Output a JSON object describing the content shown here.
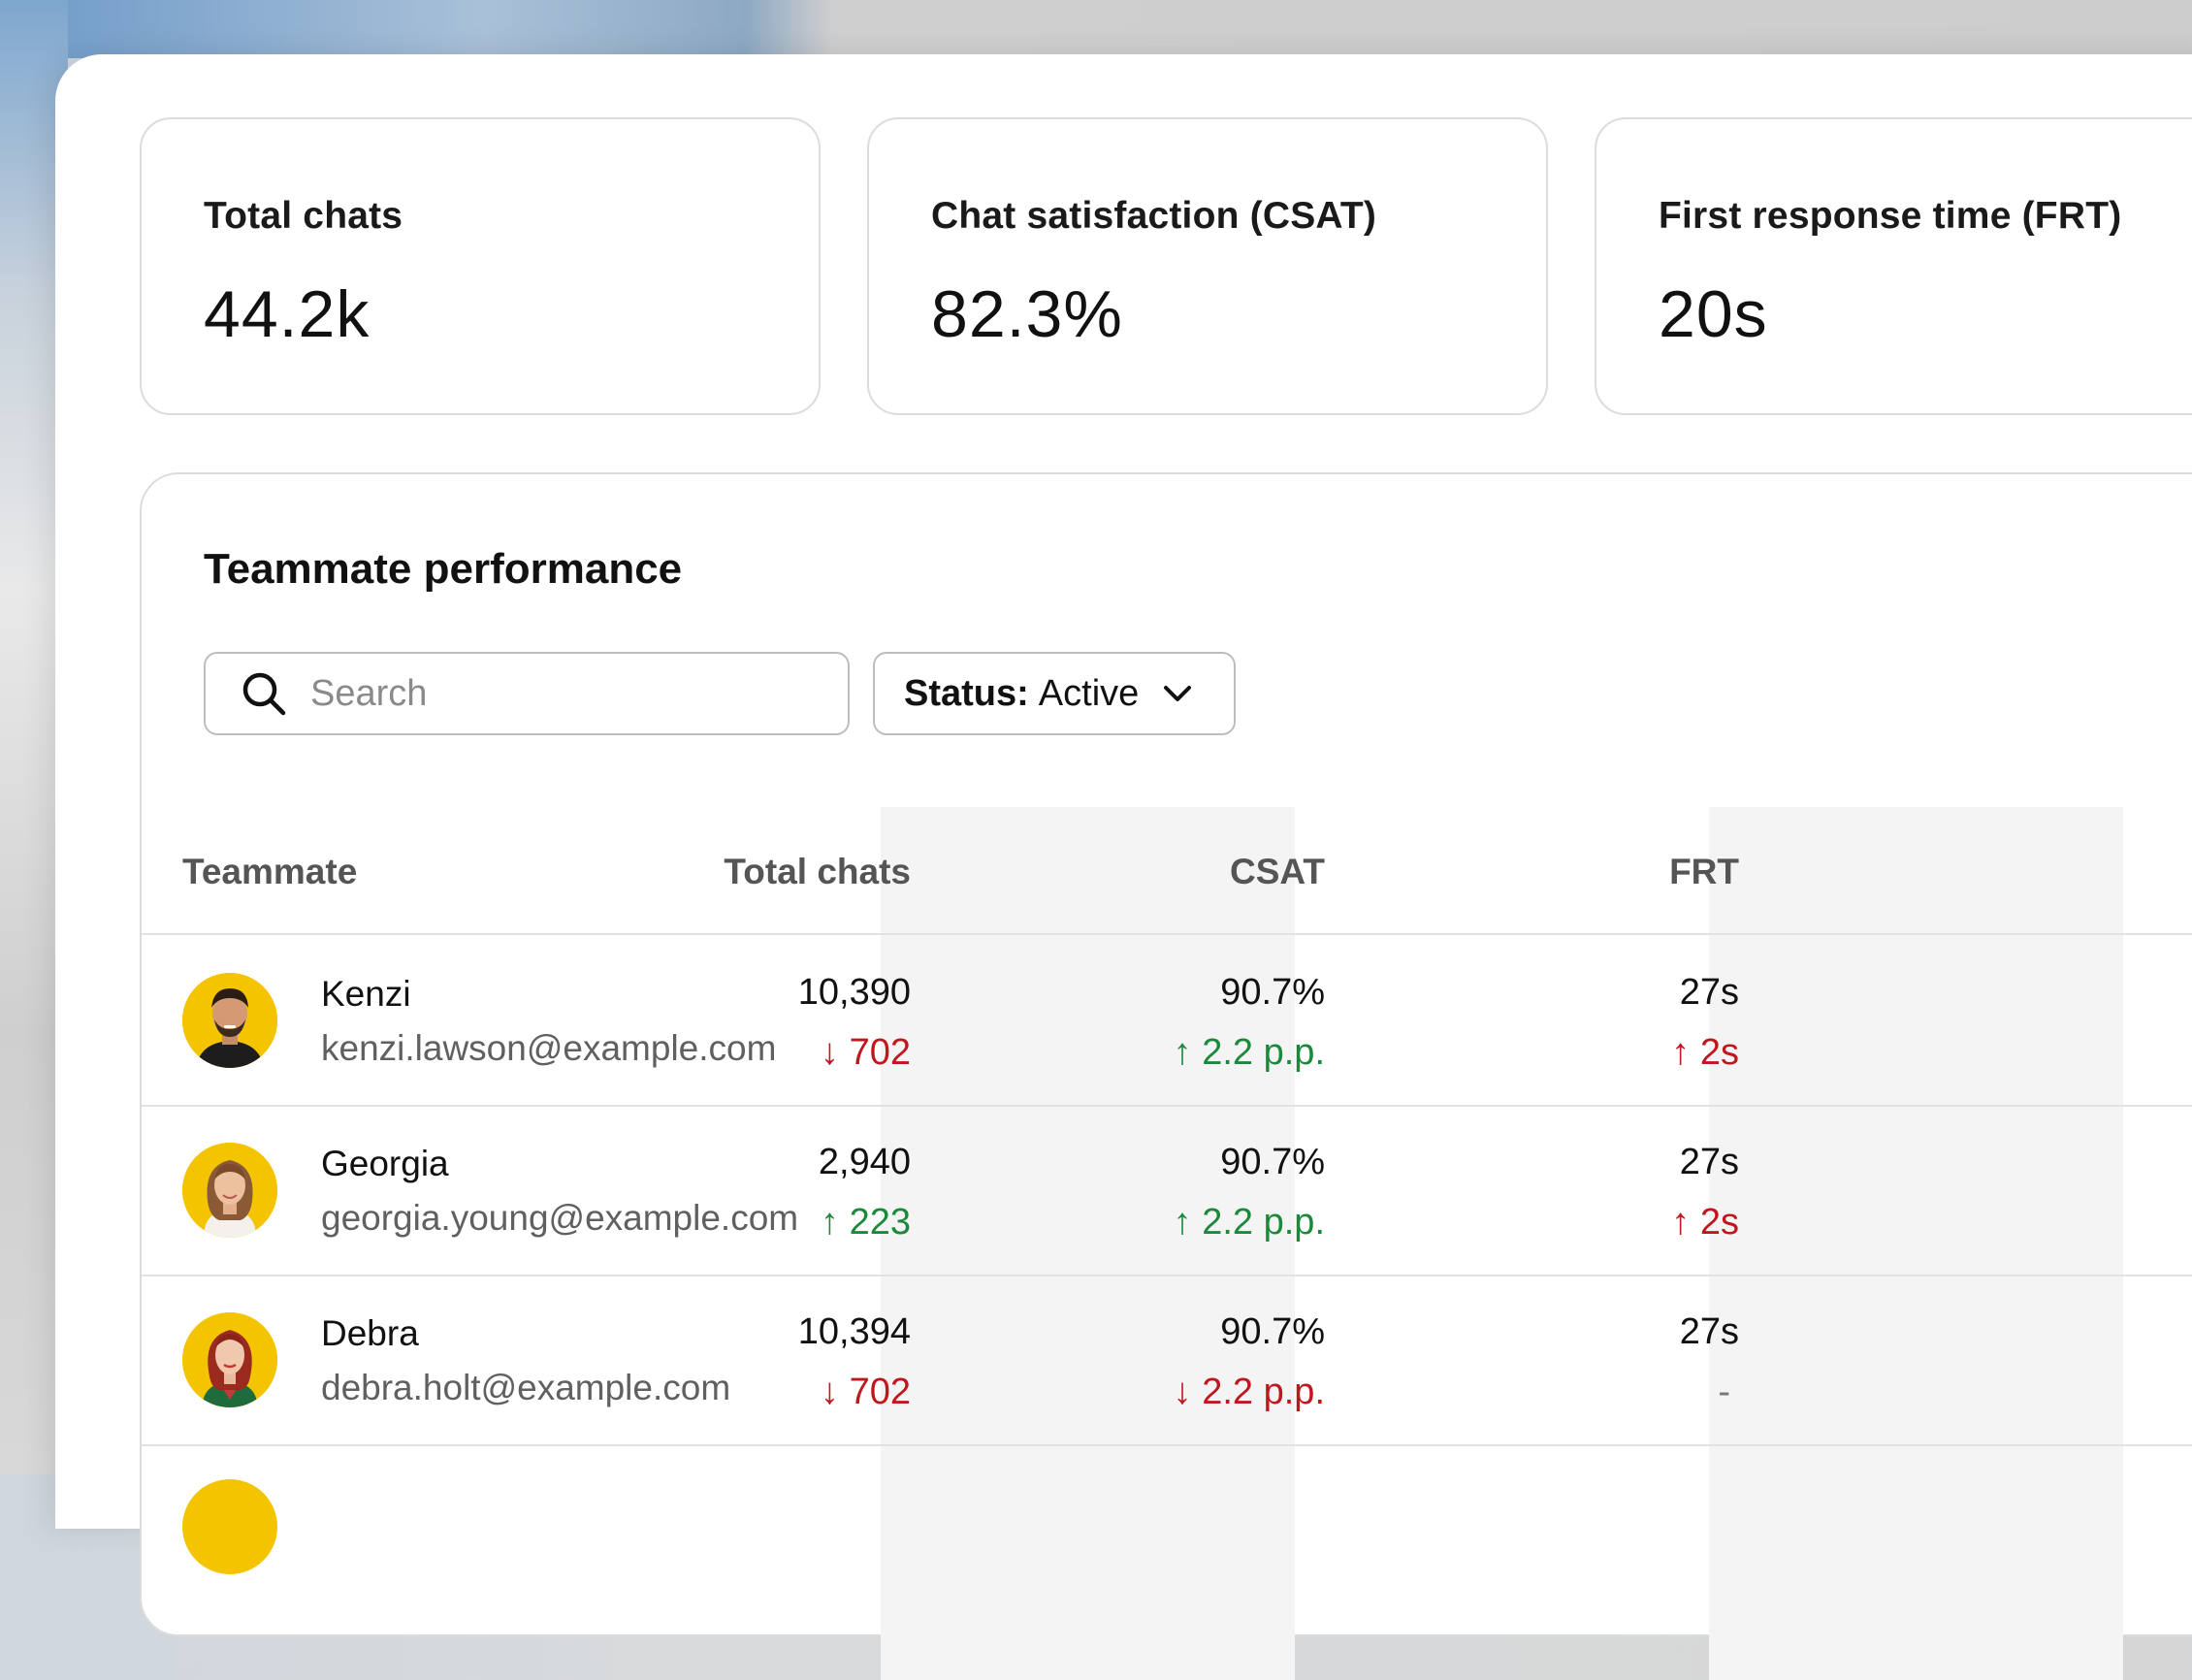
{
  "kpis": [
    {
      "label": "Total chats",
      "value": "44.2k"
    },
    {
      "label": "Chat satisfaction (CSAT)",
      "value": "82.3%"
    },
    {
      "label": "First response time (FRT)",
      "value": "20s"
    }
  ],
  "performance": {
    "title": "Teammate performance",
    "search": {
      "placeholder": "Search"
    },
    "status_filter": {
      "key": "Status:",
      "value": "Active"
    },
    "columns": [
      "Teammate",
      "Total chats",
      "CSAT",
      "FRT"
    ],
    "rows": [
      {
        "name": "Kenzi",
        "email": "kenzi.lawson@example.com",
        "total_chats": "10,390",
        "total_chats_delta": "↓ 702",
        "csat": "90.7%",
        "csat_delta": "↑ 2.2 p.p.",
        "frt": "27s",
        "frt_delta": "↑ 2s"
      },
      {
        "name": "Georgia",
        "email": "georgia.young@example.com",
        "total_chats": "2,940",
        "total_chats_delta": "↑ 223",
        "csat": "90.7%",
        "csat_delta": "↑ 2.2 p.p.",
        "frt": "27s",
        "frt_delta": "↑ 2s"
      },
      {
        "name": "Debra",
        "email": "debra.holt@example.com",
        "total_chats": "10,394",
        "total_chats_delta": "↓ 702",
        "csat": "90.7%",
        "csat_delta": "↓ 2.2 p.p.",
        "frt": "27s",
        "frt_delta": "-"
      }
    ]
  },
  "colors": {
    "positive": "#1a8a3a",
    "negative": "#c0171e",
    "avatar_bg": "#f5c400"
  }
}
